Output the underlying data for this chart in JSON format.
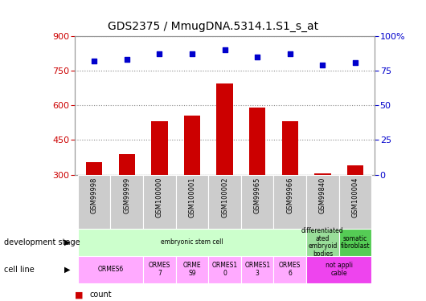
{
  "title": "GDS2375 / MmugDNA.5314.1.S1_s_at",
  "samples": [
    "GSM99998",
    "GSM99999",
    "GSM100000",
    "GSM100001",
    "GSM100002",
    "GSM99965",
    "GSM99966",
    "GSM99840",
    "GSM100004"
  ],
  "counts": [
    355,
    390,
    530,
    555,
    695,
    590,
    530,
    305,
    340
  ],
  "percentiles": [
    82,
    83,
    87,
    87,
    90,
    85,
    87,
    79,
    81
  ],
  "ymin": 300,
  "ymax": 900,
  "yticks": [
    300,
    450,
    600,
    750,
    900
  ],
  "y2ticks": [
    0,
    25,
    50,
    75,
    100
  ],
  "y2labels": [
    "0",
    "25",
    "50",
    "75",
    "100%"
  ],
  "bar_color": "#cc0000",
  "dot_color": "#0000cc",
  "bg_color": "#ffffff",
  "plot_bg": "#ffffff",
  "ylabel_left_color": "#cc0000",
  "ylabel_right_color": "#0000cc",
  "grid_color": "#888888",
  "sample_col_bg": "#cccccc",
  "dev_stage_spans": [
    {
      "start": 0,
      "end": 6,
      "label": "embryonic stem cell",
      "color": "#ccffcc"
    },
    {
      "start": 7,
      "end": 7,
      "label": "differentiated\nated\nembryoid\nbodies",
      "color": "#99dd99"
    },
    {
      "start": 8,
      "end": 8,
      "label": "somatic\nfibroblast",
      "color": "#55cc55"
    }
  ],
  "cell_line_spans": [
    {
      "start": 0,
      "end": 1,
      "label": "ORMES6",
      "color": "#ffaaff"
    },
    {
      "start": 2,
      "end": 2,
      "label": "ORMES\n7",
      "color": "#ffaaff"
    },
    {
      "start": 3,
      "end": 3,
      "label": "ORME\nS9",
      "color": "#ffaaff"
    },
    {
      "start": 4,
      "end": 4,
      "label": "ORMES1\n0",
      "color": "#ffaaff"
    },
    {
      "start": 5,
      "end": 5,
      "label": "ORMES1\n3",
      "color": "#ffaaff"
    },
    {
      "start": 6,
      "end": 6,
      "label": "ORMES\n6",
      "color": "#ffaaff"
    },
    {
      "start": 7,
      "end": 8,
      "label": "not appli\ncable",
      "color": "#ee44ee"
    }
  ]
}
